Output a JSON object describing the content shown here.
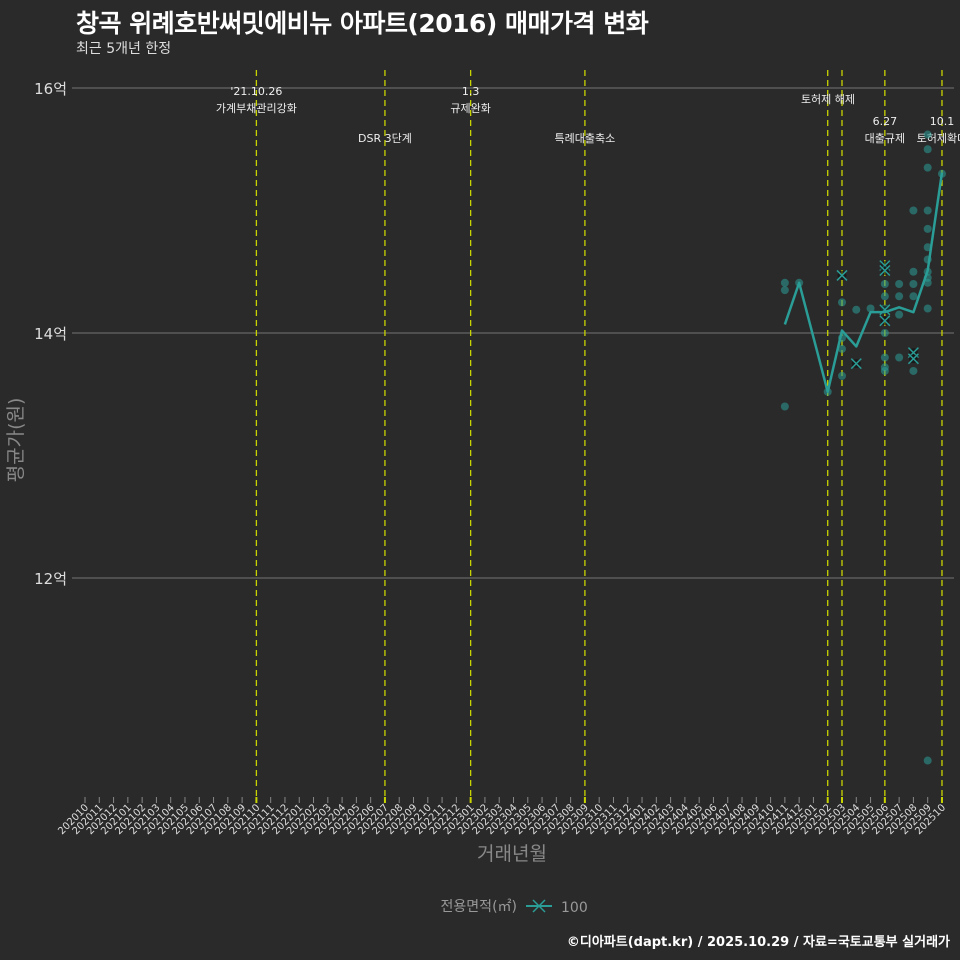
{
  "chart_data": {
    "type": "scatter+line",
    "title": "창곡 위례호반써밋에비뉴 아파트(2016) 매매가격 변화",
    "subtitle": "최근 5개년 한정",
    "xlabel": "거래년월",
    "ylabel": "평균가(원)",
    "ylim": [
      10.3,
      16.3
    ],
    "yticks": [
      {
        "value": 12,
        "label": "12억"
      },
      {
        "value": 14,
        "label": "14억"
      },
      {
        "value": 16,
        "label": "16억"
      }
    ],
    "months": [
      "2020.10",
      "2020.11",
      "2020.12",
      "2021.01",
      "2021.02",
      "2021.03",
      "2021.04",
      "2021.05",
      "2021.06",
      "2021.07",
      "2021.08",
      "2021.09",
      "2021.10",
      "2021.11",
      "2021.12",
      "2022.01",
      "2022.02",
      "2022.03",
      "2022.04",
      "2022.05",
      "2022.06",
      "2022.07",
      "2022.08",
      "2022.09",
      "2022.10",
      "2022.11",
      "2022.12",
      "2023.01",
      "2023.02",
      "2023.03",
      "2023.04",
      "2023.05",
      "2023.06",
      "2023.07",
      "2023.08",
      "2023.09",
      "2023.10",
      "2023.11",
      "2023.12",
      "2024.01",
      "2024.02",
      "2024.03",
      "2024.04",
      "2024.05",
      "2024.06",
      "2024.07",
      "2024.08",
      "2024.09",
      "2024.10",
      "2024.11",
      "2024.12",
      "2025.01",
      "2025.02",
      "2025.03",
      "2025.04",
      "2025.05",
      "2025.06",
      "2025.07",
      "2025.08",
      "2025.09",
      "2025.10"
    ],
    "tick_labels": [
      "202010",
      "202011",
      "202012",
      "202101",
      "202102",
      "202103",
      "202104",
      "202105",
      "202106",
      "202107",
      "202108",
      "202109",
      "202110",
      "202111",
      "202112",
      "202201",
      "202202",
      "202203",
      "202204",
      "202205",
      "202206",
      "202207",
      "202208",
      "202209",
      "202210",
      "202211",
      "202212",
      "202301",
      "202302",
      "202303",
      "202304",
      "202305",
      "202306",
      "202307",
      "202308",
      "202309",
      "202310",
      "202311",
      "202312",
      "202401",
      "202402",
      "202403",
      "202404",
      "202405",
      "202406",
      "202407",
      "202408",
      "202409",
      "202410",
      "202411",
      "202412",
      "202501",
      "202502",
      "202503",
      "202504",
      "202505",
      "202506",
      "202507",
      "202508",
      "202509",
      "202510"
    ],
    "legend": {
      "title": "전용면적(㎡)",
      "entries": [
        "100"
      ],
      "placement": "bottom"
    },
    "series": [
      {
        "name": "100",
        "color": "#2a9d96",
        "mean_line": [
          {
            "x": "2024.11",
            "y": 14.07
          },
          {
            "x": "2024.12",
            "y": 14.41
          },
          {
            "x": "2025.02",
            "y": 13.52
          },
          {
            "x": "2025.03",
            "y": 14.02
          },
          {
            "x": "2025.04",
            "y": 13.89
          },
          {
            "x": "2025.05",
            "y": 14.17
          },
          {
            "x": "2025.06",
            "y": 14.17
          },
          {
            "x": "2025.07",
            "y": 14.21
          },
          {
            "x": "2025.08",
            "y": 14.17
          },
          {
            "x": "2025.09",
            "y": 14.51
          },
          {
            "x": "2025.10",
            "y": 15.31
          }
        ],
        "points": [
          {
            "x": "2024.11",
            "y": 14.41
          },
          {
            "x": "2024.11",
            "y": 14.35
          },
          {
            "x": "2024.11",
            "y": 13.4
          },
          {
            "x": "2024.12",
            "y": 14.41
          },
          {
            "x": "2025.02",
            "y": 13.52
          },
          {
            "x": "2025.03",
            "y": 14.47,
            "cross": true
          },
          {
            "x": "2025.03",
            "y": 14.25
          },
          {
            "x": "2025.03",
            "y": 13.96
          },
          {
            "x": "2025.03",
            "y": 13.87
          },
          {
            "x": "2025.03",
            "y": 13.65
          },
          {
            "x": "2025.04",
            "y": 14.19
          },
          {
            "x": "2025.04",
            "y": 13.75,
            "cross": true
          },
          {
            "x": "2025.05",
            "y": 14.2
          },
          {
            "x": "2025.06",
            "y": 14.55,
            "cross": true
          },
          {
            "x": "2025.06",
            "y": 14.51,
            "cross": true
          },
          {
            "x": "2025.06",
            "y": 14.4
          },
          {
            "x": "2025.06",
            "y": 14.3
          },
          {
            "x": "2025.06",
            "y": 14.2
          },
          {
            "x": "2025.06",
            "y": 14.19,
            "cross": true
          },
          {
            "x": "2025.06",
            "y": 14.1,
            "cross": true
          },
          {
            "x": "2025.06",
            "y": 14.0
          },
          {
            "x": "2025.06",
            "y": 13.8
          },
          {
            "x": "2025.06",
            "y": 13.72
          },
          {
            "x": "2025.06",
            "y": 13.69
          },
          {
            "x": "2025.07",
            "y": 14.4
          },
          {
            "x": "2025.07",
            "y": 14.3
          },
          {
            "x": "2025.07",
            "y": 14.15
          },
          {
            "x": "2025.07",
            "y": 13.8
          },
          {
            "x": "2025.08",
            "y": 15.0
          },
          {
            "x": "2025.08",
            "y": 14.5
          },
          {
            "x": "2025.08",
            "y": 14.4
          },
          {
            "x": "2025.08",
            "y": 14.3
          },
          {
            "x": "2025.08",
            "y": 13.84,
            "cross": true
          },
          {
            "x": "2025.08",
            "y": 13.79,
            "cross": true
          },
          {
            "x": "2025.08",
            "y": 13.69
          },
          {
            "x": "2025.09",
            "y": 15.62
          },
          {
            "x": "2025.09",
            "y": 15.5
          },
          {
            "x": "2025.09",
            "y": 15.35
          },
          {
            "x": "2025.09",
            "y": 15.0
          },
          {
            "x": "2025.09",
            "y": 14.85
          },
          {
            "x": "2025.09",
            "y": 14.7
          },
          {
            "x": "2025.09",
            "y": 14.6
          },
          {
            "x": "2025.09",
            "y": 14.5
          },
          {
            "x": "2025.09",
            "y": 14.45
          },
          {
            "x": "2025.09",
            "y": 14.41
          },
          {
            "x": "2025.09",
            "y": 14.2
          },
          {
            "x": "2025.09",
            "y": 10.51
          },
          {
            "x": "2025.10",
            "y": 15.3
          }
        ]
      }
    ],
    "events": [
      {
        "x": "2021.10",
        "date": "'21.10.26",
        "label": "가계부채관리강화",
        "row": 0
      },
      {
        "x": "2022.07",
        "date": "",
        "label": "DSR 3단계",
        "row": 1
      },
      {
        "x": "2023.01",
        "date": "1.3",
        "label": "규제완화",
        "row": 0
      },
      {
        "x": "2023.09",
        "date": "",
        "label": "특례대출축소",
        "row": 1
      },
      {
        "x": "2025.02",
        "date": "",
        "label": "",
        "row": 0
      },
      {
        "x": "2025.03",
        "date": "",
        "label": "토허제 해제",
        "row": 0
      },
      {
        "x": "2025.06",
        "date": "6.27",
        "label": "대출규제",
        "row": 1
      },
      {
        "x": "2025.10",
        "date": "10.1",
        "label": "토허제확대",
        "row": 1
      }
    ],
    "event_line_color": "#c8d400",
    "grid": true
  },
  "footer": "©디아파트(dapt.kr) / 2025.10.29 / 자료=국토교통부 실거래가"
}
